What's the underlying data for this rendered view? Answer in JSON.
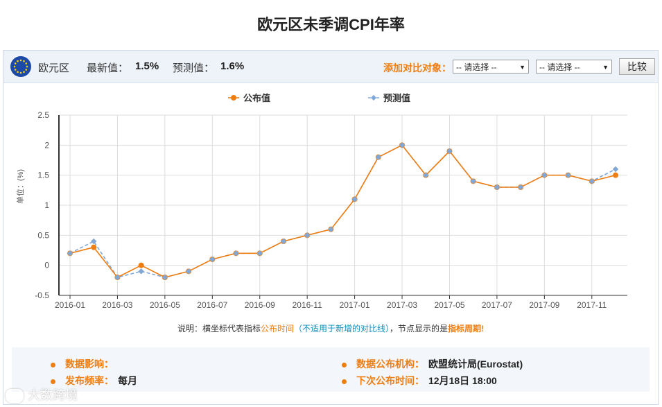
{
  "page": {
    "title": "欧元区未季调CPI年率"
  },
  "header": {
    "region": "欧元区",
    "latest_label": "最新值：",
    "latest_value": "1.5%",
    "forecast_label": "预测值：",
    "forecast_value": "1.6%",
    "compare_label": "添加对比对象：",
    "select1": "-- 请选择 --",
    "select2": "-- 请选择 --",
    "compare_button": "比较"
  },
  "note": {
    "p1": "说明：横坐标代表指标",
    "p2": "公布时间",
    "p3": "（不适用于新增的对比线）",
    "p4": "，节点显示的是",
    "p5": "指标周期",
    "p6": "!"
  },
  "info": {
    "impact_label": "数据影响：",
    "impact_value": "",
    "agency_label": "数据公布机构：",
    "agency_value": "欧盟统计局(Eurostat)",
    "freq_label": "发布频率：",
    "freq_value": "每月",
    "next_label": "下次公布时间：",
    "next_value": "12月18日 18:00"
  },
  "watermark": "大数跨境",
  "colors": {
    "published": "#ee7d12",
    "forecast": "#7fa8d8",
    "accent": "#ee7d12"
  },
  "chart_data": {
    "type": "line",
    "ylabel": "单位：(%)",
    "ylim": [
      -0.5,
      2.5
    ],
    "yticks": [
      -0.5,
      0,
      0.5,
      1,
      1.5,
      2,
      2.5
    ],
    "ytick_labels": [
      "-0.5",
      "0",
      "0.5",
      "1",
      "1.5",
      "2",
      "2.5"
    ],
    "grid": true,
    "legend_position": "top-center",
    "x": [
      "2016-01",
      "2016-02",
      "2016-03",
      "2016-04",
      "2016-05",
      "2016-06",
      "2016-07",
      "2016-08",
      "2016-09",
      "2016-10",
      "2016-11",
      "2016-12",
      "2017-01",
      "2017-02",
      "2017-03",
      "2017-04",
      "2017-05",
      "2017-06",
      "2017-07",
      "2017-08",
      "2017-09",
      "2017-10",
      "2017-11",
      "2017-12"
    ],
    "xtick_labels": [
      "2016-01",
      "2016-03",
      "2016-05",
      "2016-07",
      "2016-09",
      "2016-11",
      "2017-01",
      "2017-03",
      "2017-05",
      "2017-07",
      "2017-09",
      "2017-11"
    ],
    "series": [
      {
        "name": "公布值",
        "values": [
          0.2,
          0.3,
          -0.2,
          0.0,
          -0.2,
          -0.1,
          0.1,
          0.2,
          0.2,
          0.4,
          0.5,
          0.6,
          1.1,
          1.8,
          2.0,
          1.5,
          1.9,
          1.4,
          1.3,
          1.3,
          1.5,
          1.5,
          1.4,
          1.5
        ]
      },
      {
        "name": "预测值",
        "values": [
          0.2,
          0.4,
          -0.2,
          -0.1,
          -0.2,
          -0.1,
          0.1,
          0.2,
          0.2,
          0.4,
          0.5,
          0.6,
          1.1,
          1.8,
          2.0,
          1.5,
          1.9,
          1.4,
          1.3,
          1.3,
          1.5,
          1.5,
          1.4,
          1.6
        ]
      }
    ]
  }
}
